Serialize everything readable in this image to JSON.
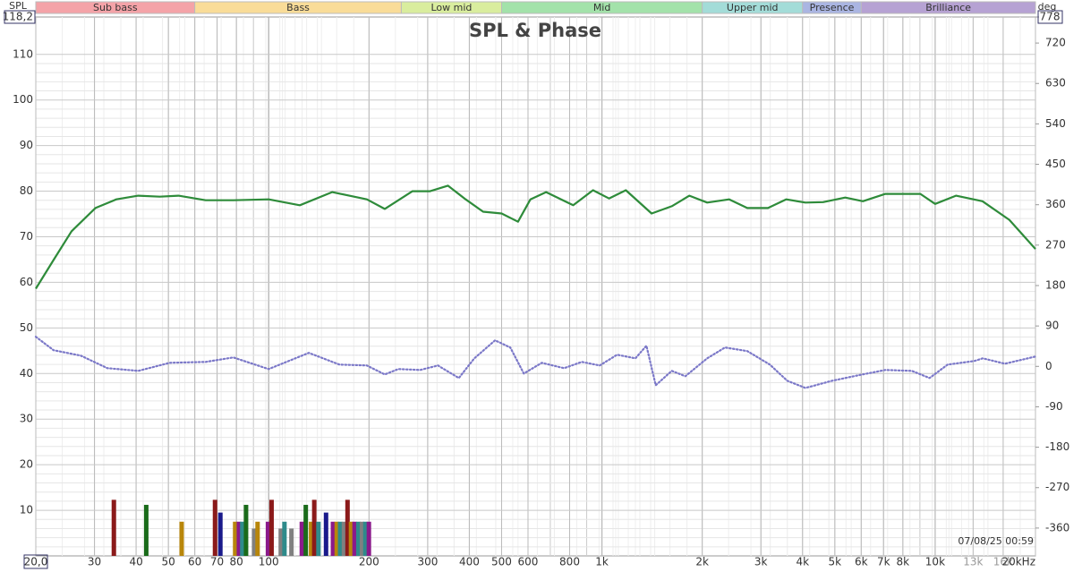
{
  "chart_data": {
    "type": "line",
    "title": "SPL & Phase",
    "y_label": "SPL",
    "y2_label": "deg",
    "timestamp": "07/08/25 00:59",
    "log_x": true,
    "grid": true,
    "xlim": [
      20,
      20000
    ],
    "ylim": [
      0,
      118.2
    ],
    "y2lim": [
      -422,
      778
    ],
    "xticks": [
      {
        "value": 20,
        "label": "20,0"
      },
      30,
      40,
      50,
      60,
      70,
      80,
      100,
      200,
      300,
      400,
      500,
      600,
      800,
      {
        "value": 1000,
        "label": "1k"
      },
      {
        "value": 2000,
        "label": "2k"
      },
      {
        "value": 3000,
        "label": "3k"
      },
      {
        "value": 4000,
        "label": "4k"
      },
      {
        "value": 5000,
        "label": "5k"
      },
      {
        "value": 6000,
        "label": "6k"
      },
      {
        "value": 7000,
        "label": "7k"
      },
      {
        "value": 8000,
        "label": "8k"
      },
      {
        "value": 10000,
        "label": "10k"
      },
      {
        "value": 13000,
        "label": "13k",
        "color": "#999"
      },
      {
        "value": 16000,
        "label": "16k",
        "color": "#999"
      },
      {
        "value": 20000,
        "label": "20kHz"
      }
    ],
    "yticks": [
      10,
      20,
      30,
      40,
      50,
      60,
      70,
      80,
      90,
      100,
      110,
      {
        "value": 118.2,
        "label": "118,2"
      }
    ],
    "y2ticks": [
      -360,
      -270,
      -180,
      -90,
      0,
      90,
      180,
      270,
      360,
      450,
      540,
      630,
      720,
      778
    ],
    "bands": [
      {
        "label": "Sub bass",
        "from": 20,
        "to": 60,
        "color": "#f4a3a8"
      },
      {
        "label": "Bass",
        "from": 60,
        "to": 250,
        "color": "#f9dc98"
      },
      {
        "label": "Low mid",
        "from": 250,
        "to": 500,
        "color": "#d9ed9e"
      },
      {
        "label": "Mid",
        "from": 500,
        "to": 2000,
        "color": "#a3e2aa"
      },
      {
        "label": "Upper mid",
        "from": 2000,
        "to": 4000,
        "color": "#a3dcd8"
      },
      {
        "label": "Presence",
        "from": 4000,
        "to": 6000,
        "color": "#aab5e2"
      },
      {
        "label": "Brilliance",
        "from": 6000,
        "to": 20000,
        "color": "#b6a2d3"
      }
    ],
    "series": [
      {
        "color": "#2e8b3a",
        "axis": "y",
        "dash": false,
        "x": [
          20,
          22.6,
          25.6,
          30.2,
          34.9,
          40.6,
          47.1,
          53.6,
          64.7,
          78.3,
          100,
          124,
          155,
          197,
          223,
          270,
          305,
          345,
          390,
          440,
          500,
          560,
          610,
          680,
          820,
          940,
          1050,
          1180,
          1410,
          1620,
          1830,
          2070,
          2410,
          2730,
          3150,
          3570,
          4080,
          4610,
          5370,
          6070,
          7090,
          9030,
          10000,
          11550,
          13870,
          16700,
          20000
        ],
        "values": [
          58.6,
          64.9,
          71.2,
          76.3,
          78.2,
          79,
          78.8,
          79,
          78,
          78,
          78.2,
          76.9,
          79.8,
          78.2,
          76.1,
          80,
          80,
          81.2,
          78.2,
          75.5,
          75.1,
          73.3,
          78.2,
          79.8,
          76.9,
          80.2,
          78.4,
          80.2,
          75.1,
          76.7,
          79,
          77.5,
          78.2,
          76.3,
          76.3,
          78.2,
          77.5,
          77.6,
          78.6,
          77.8,
          79.4,
          79.4,
          77.2,
          79,
          77.8,
          73.7,
          67.3
        ]
      },
      {
        "color": "#7b78c8",
        "axis": "y2",
        "dash": true,
        "x": [
          20,
          22.6,
          27.3,
          32.8,
          40.6,
          50.5,
          64.7,
          78.3,
          100,
          132,
          163,
          197,
          223,
          245,
          285,
          322,
          372,
          414,
          478,
          531,
          583,
          660,
          770,
          870,
          985,
          1110,
          1260,
          1360,
          1450,
          1620,
          1780,
          2070,
          2340,
          2730,
          3190,
          3600,
          4080,
          4900,
          5870,
          7090,
          8510,
          9620,
          10900,
          13100,
          13900,
          16200,
          20000
        ],
        "values": [
          66,
          36,
          24,
          -4,
          -10,
          8,
          10,
          20,
          -6,
          30,
          4,
          2,
          -18,
          -6,
          -8,
          2,
          -26,
          18,
          58,
          42,
          -16,
          8,
          -4,
          10,
          2,
          26,
          18,
          46,
          -42,
          -10,
          -22,
          18,
          42,
          34,
          4,
          -32,
          -48,
          -32,
          -20,
          -8,
          -10,
          -26,
          4,
          12,
          18,
          6,
          22
        ]
      }
    ],
    "modes": {
      "x": [
        34.3,
        42.9,
        54.8,
        69,
        71.6,
        79.3,
        81.4,
        83.3,
        85.5,
        90.4,
        92.6,
        99.5,
        102,
        108.7,
        111.5,
        117,
        125.7,
        129.2,
        134,
        137,
        141,
        148.6,
        155.9,
        160,
        163.8,
        168.2,
        172.4,
        176.6,
        181,
        185.8,
        190.5,
        195,
        199.8
      ],
      "values": [
        12.3,
        11.2,
        7.5,
        12.3,
        9.5,
        7.5,
        7.5,
        7.5,
        11.2,
        6,
        7.5,
        7.5,
        12.3,
        6,
        7.5,
        6,
        7.5,
        11.2,
        7.5,
        12.3,
        7.5,
        9.5,
        7.5,
        7.5,
        7.5,
        7.5,
        12.3,
        7.5,
        7.5,
        7.5,
        7.5,
        7.5,
        7.5
      ],
      "colors": [
        "#8b1a1a",
        "#1a6b1a",
        "#b8860b",
        "#8b1a1a",
        "#1a1a8b",
        "#b8860b",
        "#8b1a8b",
        "#2e8b8b",
        "#1a6b1a",
        "#808080",
        "#b8860b",
        "#8b1a8b",
        "#8b1a1a",
        "#808080",
        "#2e8b8b",
        "#808080",
        "#8b1a8b",
        "#1a6b1a",
        "#b8860b",
        "#8b1a1a",
        "#2e8b8b",
        "#1a1a8b",
        "#8b1a8b",
        "#b8860b",
        "#2e8b8b",
        "#808080",
        "#8b1a1a",
        "#b8860b",
        "#8b1a8b",
        "#2e8b8b",
        "#808080",
        "#2e8b8b",
        "#8b1a8b"
      ]
    }
  }
}
